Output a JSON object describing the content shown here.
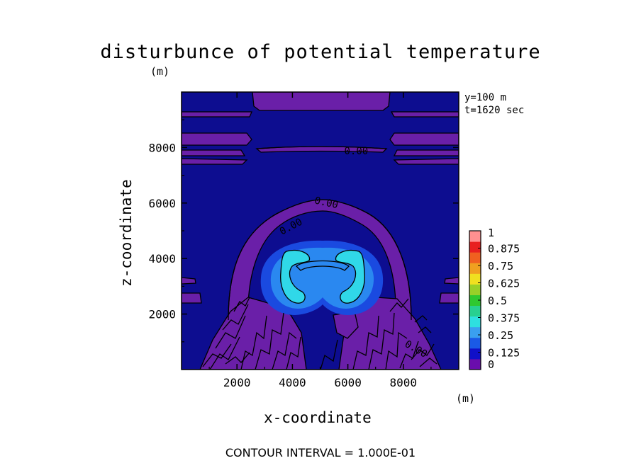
{
  "chart_data": {
    "type": "heatmap",
    "title": "disturbunce of potential temperature",
    "xlabel": "x-coordinate",
    "ylabel": "z-coordinate",
    "x_unit": "(m)",
    "y_unit": "(m)",
    "xlim": [
      0,
      10000
    ],
    "ylim": [
      0,
      10000
    ],
    "x_ticks": [
      2000,
      4000,
      6000,
      8000
    ],
    "y_ticks": [
      2000,
      4000,
      6000,
      8000
    ],
    "x_tick_labels": [
      "2000",
      "4000",
      "6000",
      "8000"
    ],
    "y_tick_labels": [
      "2000",
      "4000",
      "6000",
      "8000"
    ],
    "info": [
      "y=100 m",
      "t=1620 sec"
    ],
    "contour_labels": [
      "0.00",
      "0.00",
      "0.00",
      "0.00"
    ],
    "footer": "CONTOUR INTERVAL = 1.000E-01",
    "colorbar": {
      "min": 0,
      "max": 1,
      "tick_values": [
        1,
        0.875,
        0.75,
        0.625,
        0.5,
        0.375,
        0.25,
        0.125,
        0
      ],
      "tick_labels": [
        "1",
        "0.875",
        "0.75",
        "0.625",
        "0.5",
        "0.375",
        "0.25",
        "0.125",
        "0"
      ],
      "colors": [
        "#6a0dad",
        "#1010c8",
        "#1a5ae6",
        "#3aa0f0",
        "#2ee0e0",
        "#28d090",
        "#2fc82f",
        "#98d028",
        "#f0e020",
        "#f0a020",
        "#f06020",
        "#e82020",
        "#ff9090"
      ]
    },
    "colors": {
      "background": "#0d0d90",
      "negative_band": "#6a1fa8",
      "warm_halo": "#1a4ae0",
      "warm_inner": "#2a88f0",
      "warm_core": "#30d8e8"
    }
  }
}
